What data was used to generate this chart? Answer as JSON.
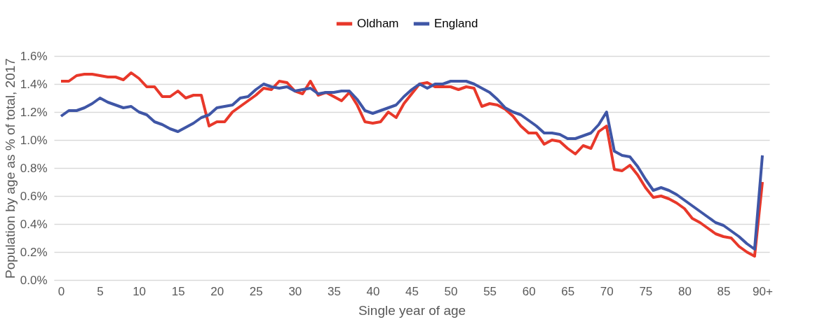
{
  "chart_data": {
    "type": "line",
    "xlabel": "Single year of age",
    "ylabel": "Population by age as % of total, 2017",
    "categories": [
      "0",
      null,
      null,
      null,
      null,
      "5",
      null,
      null,
      null,
      null,
      "10",
      null,
      null,
      null,
      null,
      "15",
      null,
      null,
      null,
      null,
      "20",
      null,
      null,
      null,
      null,
      "25",
      null,
      null,
      null,
      null,
      "30",
      null,
      null,
      null,
      null,
      "35",
      null,
      null,
      null,
      null,
      "40",
      null,
      null,
      null,
      null,
      "45",
      null,
      null,
      null,
      null,
      "50",
      null,
      null,
      null,
      null,
      "55",
      null,
      null,
      null,
      null,
      "60",
      null,
      null,
      null,
      null,
      "65",
      null,
      null,
      null,
      null,
      "70",
      null,
      null,
      null,
      null,
      "75",
      null,
      null,
      null,
      null,
      "80",
      null,
      null,
      null,
      null,
      "85",
      null,
      null,
      null,
      null,
      "90+"
    ],
    "series": [
      {
        "name": "Oldham",
        "color": "#e8382a",
        "values": [
          1.42,
          1.42,
          1.46,
          1.47,
          1.47,
          1.46,
          1.45,
          1.45,
          1.43,
          1.48,
          1.44,
          1.38,
          1.38,
          1.31,
          1.31,
          1.35,
          1.3,
          1.32,
          1.32,
          1.1,
          1.13,
          1.13,
          1.2,
          1.24,
          1.28,
          1.32,
          1.37,
          1.36,
          1.42,
          1.41,
          1.35,
          1.33,
          1.42,
          1.32,
          1.34,
          1.31,
          1.28,
          1.34,
          1.25,
          1.13,
          1.12,
          1.13,
          1.2,
          1.16,
          1.26,
          1.33,
          1.4,
          1.41,
          1.38,
          1.38,
          1.38,
          1.36,
          1.38,
          1.37,
          1.24,
          1.26,
          1.25,
          1.22,
          1.17,
          1.1,
          1.05,
          1.05,
          0.97,
          1.0,
          0.99,
          0.94,
          0.9,
          0.96,
          0.94,
          1.06,
          1.1,
          0.79,
          0.78,
          0.82,
          0.75,
          0.66,
          0.59,
          0.6,
          0.58,
          0.55,
          0.51,
          0.44,
          0.41,
          0.37,
          0.33,
          0.31,
          0.3,
          0.24,
          0.2,
          0.17,
          0.7
        ]
      },
      {
        "name": "England",
        "color": "#3f56a6",
        "values": [
          1.17,
          1.21,
          1.21,
          1.23,
          1.26,
          1.3,
          1.27,
          1.25,
          1.23,
          1.24,
          1.2,
          1.18,
          1.13,
          1.11,
          1.08,
          1.06,
          1.09,
          1.12,
          1.16,
          1.18,
          1.23,
          1.24,
          1.25,
          1.3,
          1.31,
          1.36,
          1.4,
          1.38,
          1.37,
          1.38,
          1.35,
          1.36,
          1.37,
          1.33,
          1.34,
          1.34,
          1.35,
          1.35,
          1.29,
          1.21,
          1.19,
          1.21,
          1.23,
          1.25,
          1.31,
          1.36,
          1.4,
          1.37,
          1.4,
          1.4,
          1.42,
          1.42,
          1.42,
          1.4,
          1.37,
          1.34,
          1.29,
          1.23,
          1.2,
          1.18,
          1.14,
          1.1,
          1.05,
          1.05,
          1.04,
          1.01,
          1.01,
          1.03,
          1.05,
          1.11,
          1.2,
          0.92,
          0.89,
          0.88,
          0.81,
          0.72,
          0.64,
          0.66,
          0.64,
          0.61,
          0.57,
          0.53,
          0.49,
          0.45,
          0.41,
          0.39,
          0.35,
          0.31,
          0.26,
          0.22,
          0.89
        ]
      }
    ],
    "ylim": [
      0,
      1.6
    ],
    "yticks": [
      {
        "value": 0,
        "label": "0.0%"
      },
      {
        "value": 0.2,
        "label": "0.2%"
      },
      {
        "value": 0.4,
        "label": "0.4%"
      },
      {
        "value": 0.6,
        "label": "0.6%"
      },
      {
        "value": 0.8,
        "label": "0.8%"
      },
      {
        "value": 1.0,
        "label": "1.0%"
      },
      {
        "value": 1.2,
        "label": "1.2%"
      },
      {
        "value": 1.4,
        "label": "1.4%"
      },
      {
        "value": 1.6,
        "label": "1.6%"
      }
    ],
    "grid": "y",
    "legend": "top",
    "marker": "none",
    "line_style": "solid"
  }
}
